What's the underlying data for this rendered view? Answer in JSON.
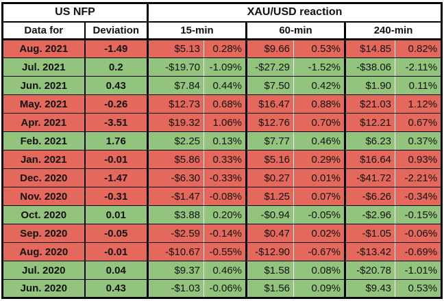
{
  "header": {
    "left_group": "US NFP",
    "right_group": "XAU/USD reaction",
    "col_data_for": "Data for",
    "col_deviation": "Deviation",
    "col_15min": "15-min",
    "col_60min": "60-min",
    "col_240min": "240-min"
  },
  "colors": {
    "row_red": "#e4685c",
    "row_green": "#93c47d",
    "border": "#000000",
    "header_bg": "#ffffff"
  },
  "chart_data": {
    "type": "table",
    "title": "US NFP deviation vs XAU/USD reaction",
    "column_headers": [
      "Data for",
      "Deviation",
      "15-min USD",
      "15-min %",
      "60-min USD",
      "60-min %",
      "240-min USD",
      "240-min %"
    ],
    "rows": [
      {
        "data_for": "Aug. 2021",
        "deviation": "-1.49",
        "min15": [
          "$5.13",
          "0.28%"
        ],
        "min60": [
          "$9.66",
          "0.53%"
        ],
        "min240": [
          "$14.85",
          "0.82%"
        ],
        "tone": "red"
      },
      {
        "data_for": "Jul. 2021",
        "deviation": "0.2",
        "min15": [
          "-$19.70",
          "-1.09%"
        ],
        "min60": [
          "-$27.29",
          "-1.52%"
        ],
        "min240": [
          "-$38.06",
          "-2.11%"
        ],
        "tone": "green"
      },
      {
        "data_for": "Jun. 2021",
        "deviation": "0.43",
        "min15": [
          "$7.84",
          "0.44%"
        ],
        "min60": [
          "$7.50",
          "0.42%"
        ],
        "min240": [
          "$1.90",
          "0.11%"
        ],
        "tone": "green"
      },
      {
        "data_for": "May. 2021",
        "deviation": "-0.26",
        "min15": [
          "$12.73",
          "0.68%"
        ],
        "min60": [
          "$16.47",
          "0.88%"
        ],
        "min240": [
          "$21.03",
          "1.12%"
        ],
        "tone": "red"
      },
      {
        "data_for": "Apr. 2021",
        "deviation": "-3.51",
        "min15": [
          "$19.32",
          "1.06%"
        ],
        "min60": [
          "$12.76",
          "0.70%"
        ],
        "min240": [
          "$12.21",
          "0.67%"
        ],
        "tone": "red"
      },
      {
        "data_for": "Feb. 2021",
        "deviation": "1.76",
        "min15": [
          "$2.25",
          "0.13%"
        ],
        "min60": [
          "$7.77",
          "0.46%"
        ],
        "min240": [
          "$6.23",
          "0.37%"
        ],
        "tone": "green"
      },
      {
        "data_for": "Jan. 2021",
        "deviation": "-0.01",
        "min15": [
          "$5.86",
          "0.33%"
        ],
        "min60": [
          "$5.16",
          "0.29%"
        ],
        "min240": [
          "$16.64",
          "0.93%"
        ],
        "tone": "red"
      },
      {
        "data_for": "Dec. 2020",
        "deviation": "-1.47",
        "min15": [
          "-$6.30",
          "-0.33%"
        ],
        "min60": [
          "$0.27",
          "0.01%"
        ],
        "min240": [
          "-$41.72",
          "-2.21%"
        ],
        "tone": "red"
      },
      {
        "data_for": "Nov. 2020",
        "deviation": "-0.31",
        "min15": [
          "-$1.47",
          "-0.08%"
        ],
        "min60": [
          "$1.25",
          "0.07%"
        ],
        "min240": [
          "-$6.26",
          "-0.34%"
        ],
        "tone": "red"
      },
      {
        "data_for": "Oct. 2020",
        "deviation": "0.01",
        "min15": [
          "$3.88",
          "0.20%"
        ],
        "min60": [
          "-$0.94",
          "-0.05%"
        ],
        "min240": [
          "-$2.96",
          "-0.15%"
        ],
        "tone": "green"
      },
      {
        "data_for": "Sep. 2020",
        "deviation": "-0.05",
        "min15": [
          "-$2.59",
          "-0.14%"
        ],
        "min60": [
          "$0.47",
          "0.02%"
        ],
        "min240": [
          "-$1.05",
          "-0.06%"
        ],
        "tone": "red"
      },
      {
        "data_for": "Aug. 2020",
        "deviation": "-0.01",
        "min15": [
          "-$10.67",
          "-0.55%"
        ],
        "min60": [
          "-$12.90",
          "-0.67%"
        ],
        "min240": [
          "-$13.42",
          "-0.69%"
        ],
        "tone": "red"
      },
      {
        "data_for": "Jul. 2020",
        "deviation": "0.04",
        "min15": [
          "$9.37",
          "0.46%"
        ],
        "min60": [
          "$1.58",
          "0.08%"
        ],
        "min240": [
          "-$20.78",
          "-1.01%"
        ],
        "tone": "green"
      },
      {
        "data_for": "Jun. 2020",
        "deviation": "0.43",
        "min15": [
          "-$1.03",
          "-0.06%"
        ],
        "min60": [
          "$1.56",
          "0.09%"
        ],
        "min240": [
          "$9.43",
          "0.53%"
        ],
        "tone": "green"
      }
    ]
  }
}
